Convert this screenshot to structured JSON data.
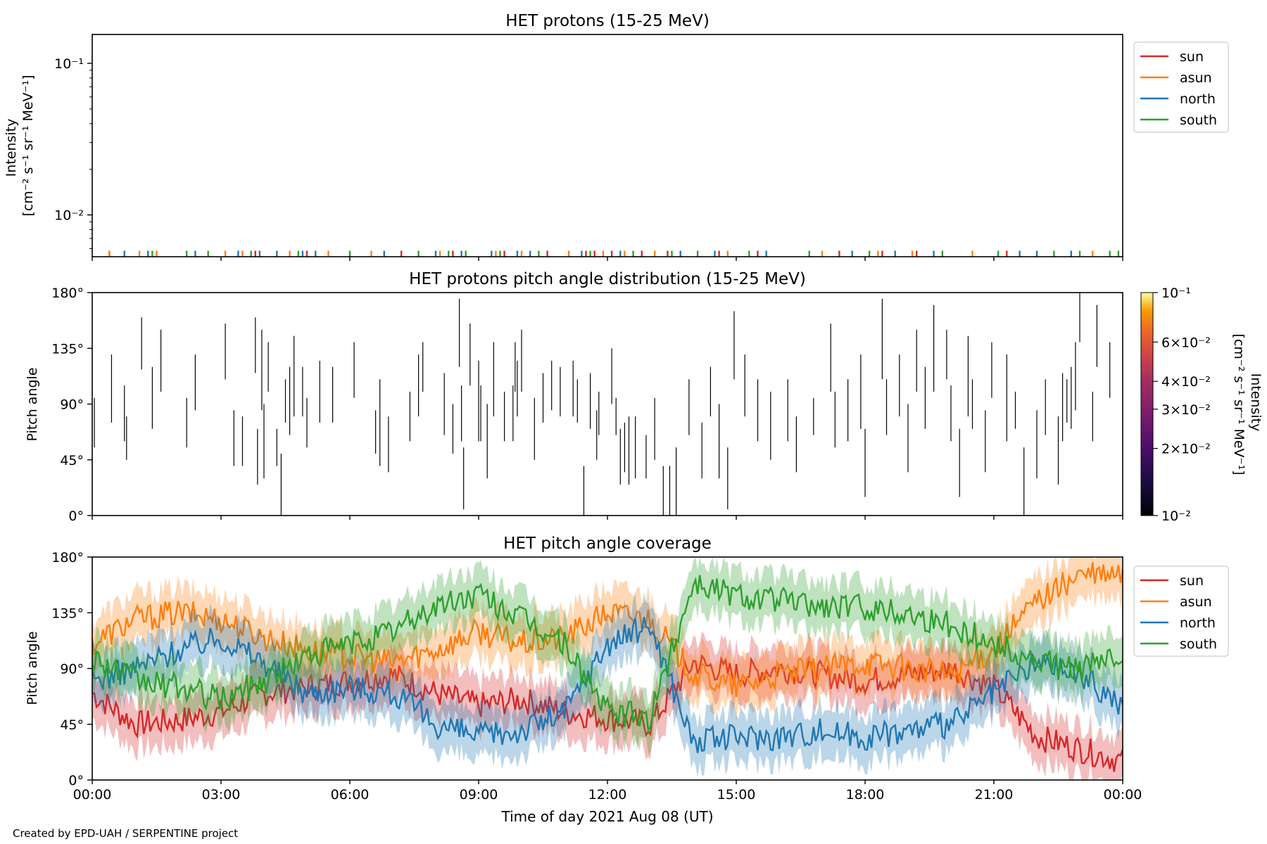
{
  "footer": "Created by EPD-UAH / SERPENTINE project",
  "xlabel": "Time of day 2021 Aug 08 (UT)",
  "xticks": [
    "00:00",
    "03:00",
    "06:00",
    "09:00",
    "12:00",
    "15:00",
    "18:00",
    "21:00",
    "00:00"
  ],
  "colors": {
    "sun": "#d62728",
    "asun": "#ff7f0e",
    "north": "#1f77b4",
    "south": "#2ca02c"
  },
  "chart_data": [
    {
      "type": "line",
      "title": "HET protons (15-25 MeV)",
      "ylabel_line1": "Intensity",
      "ylabel_line2": "[cm⁻² s⁻¹ sr⁻¹ MeV⁻¹]",
      "yscale": "log",
      "ylim": [
        0.0053,
        0.155
      ],
      "yticks": [
        {
          "value": 0.1,
          "label": "10⁻¹"
        },
        {
          "value": 0.01,
          "label": "10⁻²"
        }
      ],
      "xlim_hours": [
        0,
        24
      ],
      "legend": [
        "sun",
        "asun",
        "north",
        "south"
      ],
      "legend_position": "upper right, outside",
      "note": "only isolated single-count spikes just above the lower axis limit",
      "series": [
        {
          "name": "sun",
          "color": "#d62728",
          "spike_hours": [
            0.4,
            3.8,
            5.0,
            7.2,
            8.4,
            9.6,
            10.6,
            11.5,
            11.7,
            12.1,
            12.8,
            13.4,
            14.6,
            15.5,
            17.4,
            18.4,
            19.2,
            21.3,
            22.8
          ]
        },
        {
          "name": "asun",
          "color": "#ff7f0e",
          "spike_hours": [
            0.4,
            1.1,
            1.5,
            3.1,
            3.5,
            4.6,
            5.5,
            6.5,
            8.1,
            9.4,
            10.0,
            11.1,
            11.9,
            12.4,
            13.1,
            14.8,
            17.0,
            18.3,
            19.1,
            20.5,
            23.3
          ]
        },
        {
          "name": "north",
          "color": "#1f77b4",
          "spike_hours": [
            0.75,
            1.3,
            2.4,
            3.4,
            3.9,
            4.3,
            4.9,
            5.2,
            6.8,
            8.0,
            8.6,
            9.3,
            9.9,
            10.2,
            11.4,
            12.3,
            13.7,
            14.5,
            15.7,
            17.7,
            18.7,
            19.6,
            21.6,
            22.0,
            22.8
          ]
        },
        {
          "name": "south",
          "color": "#2ca02c",
          "spike_hours": [
            1.4,
            2.2,
            2.7,
            3.7,
            4.8,
            6.0,
            7.6,
            8.3,
            8.7,
            9.5,
            10.4,
            11.6,
            12.6,
            13.5,
            14.1,
            15.3,
            16.7,
            18.1,
            19.8,
            21.1,
            22.4,
            23.0,
            23.7,
            23.9
          ]
        }
      ]
    },
    {
      "type": "heatmap",
      "title": "HET protons pitch angle distribution (15-25 MeV)",
      "ylabel": "Pitch angle",
      "ylim": [
        0,
        180
      ],
      "yticks": [
        "0°",
        "45°",
        "90°",
        "135°",
        "180°"
      ],
      "xlim_hours": [
        0,
        24
      ],
      "colorbar": {
        "label": "Intensity",
        "units": "[cm⁻² s⁻¹ sr⁻¹ MeV⁻¹]",
        "scale": "log",
        "range": [
          0.01,
          0.1
        ],
        "colormap": "inferno",
        "ticks": [
          {
            "value": 0.1,
            "label": "10⁻¹"
          },
          {
            "value": 0.06,
            "label": "6×10⁻²"
          },
          {
            "value": 0.04,
            "label": "4×10⁻²"
          },
          {
            "value": 0.03,
            "label": "3×10⁻²"
          },
          {
            "value": 0.02,
            "label": "2×10⁻²"
          },
          {
            "value": 0.01,
            "label": "10⁻²"
          }
        ]
      },
      "note": "sparse, near-black narrow vertical segments (pitch-angle bins with counts)",
      "segments": [
        [
          0.05,
          55,
          95
        ],
        [
          0.45,
          75,
          130
        ],
        [
          0.75,
          60,
          105
        ],
        [
          0.8,
          45,
          80
        ],
        [
          1.15,
          118,
          160
        ],
        [
          1.4,
          70,
          120
        ],
        [
          1.6,
          100,
          150
        ],
        [
          2.2,
          55,
          95
        ],
        [
          2.4,
          85,
          130
        ],
        [
          3.1,
          110,
          155
        ],
        [
          3.3,
          40,
          85
        ],
        [
          3.5,
          40,
          80
        ],
        [
          3.8,
          115,
          160
        ],
        [
          3.85,
          25,
          70
        ],
        [
          3.95,
          85,
          150
        ],
        [
          4.0,
          30,
          90
        ],
        [
          4.1,
          100,
          140
        ],
        [
          4.3,
          40,
          70
        ],
        [
          4.4,
          0,
          50
        ],
        [
          4.5,
          75,
          110
        ],
        [
          4.6,
          65,
          120
        ],
        [
          4.7,
          80,
          145
        ],
        [
          4.9,
          80,
          120
        ],
        [
          5.0,
          55,
          95
        ],
        [
          5.3,
          75,
          125
        ],
        [
          5.6,
          75,
          120
        ],
        [
          6.1,
          95,
          140
        ],
        [
          6.6,
          50,
          85
        ],
        [
          6.7,
          40,
          110
        ],
        [
          6.9,
          35,
          80
        ],
        [
          7.4,
          60,
          100
        ],
        [
          7.6,
          80,
          130
        ],
        [
          7.7,
          100,
          140
        ],
        [
          8.2,
          65,
          115
        ],
        [
          8.4,
          50,
          90
        ],
        [
          8.55,
          120,
          175
        ],
        [
          8.6,
          60,
          105
        ],
        [
          8.65,
          5,
          55
        ],
        [
          8.8,
          105,
          155
        ],
        [
          9.0,
          60,
          125
        ],
        [
          9.05,
          60,
          105
        ],
        [
          9.2,
          30,
          90
        ],
        [
          9.35,
          80,
          140
        ],
        [
          9.6,
          60,
          100
        ],
        [
          9.8,
          60,
          105
        ],
        [
          9.85,
          100,
          140
        ],
        [
          9.9,
          80,
          125
        ],
        [
          10.0,
          100,
          150
        ],
        [
          10.3,
          45,
          95
        ],
        [
          10.5,
          75,
          115
        ],
        [
          10.7,
          85,
          125
        ],
        [
          10.9,
          80,
          120
        ],
        [
          11.2,
          80,
          125
        ],
        [
          11.3,
          75,
          110
        ],
        [
          11.45,
          0,
          40
        ],
        [
          11.6,
          70,
          115
        ],
        [
          11.75,
          45,
          85
        ],
        [
          11.8,
          65,
          100
        ],
        [
          12.1,
          90,
          135
        ],
        [
          12.2,
          65,
          95
        ],
        [
          12.3,
          25,
          70
        ],
        [
          12.4,
          35,
          75
        ],
        [
          12.5,
          25,
          80
        ],
        [
          12.65,
          30,
          80
        ],
        [
          12.9,
          30,
          65
        ],
        [
          13.1,
          45,
          95
        ],
        [
          13.3,
          0,
          40
        ],
        [
          13.45,
          0,
          40
        ],
        [
          13.6,
          0,
          55
        ],
        [
          13.9,
          65,
          110
        ],
        [
          14.2,
          30,
          75
        ],
        [
          14.4,
          80,
          120
        ],
        [
          14.6,
          30,
          90
        ],
        [
          14.8,
          5,
          55
        ],
        [
          14.95,
          110,
          165
        ],
        [
          15.2,
          80,
          130
        ],
        [
          15.5,
          60,
          110
        ],
        [
          15.8,
          45,
          100
        ],
        [
          16.2,
          60,
          110
        ],
        [
          16.4,
          35,
          80
        ],
        [
          16.8,
          65,
          95
        ],
        [
          17.2,
          100,
          155
        ],
        [
          17.3,
          55,
          100
        ],
        [
          17.6,
          60,
          110
        ],
        [
          17.9,
          70,
          130
        ],
        [
          18.0,
          15,
          70
        ],
        [
          18.4,
          110,
          175
        ],
        [
          18.5,
          65,
          110
        ],
        [
          18.8,
          80,
          130
        ],
        [
          19.0,
          35,
          90
        ],
        [
          19.2,
          100,
          150
        ],
        [
          19.4,
          70,
          120
        ],
        [
          19.6,
          100,
          170
        ],
        [
          19.9,
          110,
          150
        ],
        [
          20.0,
          60,
          105
        ],
        [
          20.2,
          15,
          70
        ],
        [
          20.4,
          80,
          145
        ],
        [
          20.5,
          70,
          110
        ],
        [
          20.8,
          35,
          85
        ],
        [
          20.95,
          95,
          140
        ],
        [
          21.3,
          60,
          130
        ],
        [
          21.5,
          70,
          100
        ],
        [
          21.7,
          0,
          55
        ],
        [
          22.0,
          30,
          85
        ],
        [
          22.2,
          65,
          110
        ],
        [
          22.5,
          25,
          80
        ],
        [
          22.6,
          60,
          115
        ],
        [
          22.7,
          75,
          110
        ],
        [
          22.8,
          70,
          120
        ],
        [
          22.9,
          85,
          140
        ],
        [
          23.0,
          140,
          180
        ],
        [
          23.3,
          60,
          100
        ],
        [
          23.4,
          120,
          170
        ],
        [
          23.7,
          95,
          140
        ]
      ]
    },
    {
      "type": "line",
      "title": "HET pitch angle coverage",
      "ylabel": "Pitch angle",
      "ylim": [
        0,
        180
      ],
      "yticks": [
        "0°",
        "45°",
        "90°",
        "135°",
        "180°"
      ],
      "xlim_hours": [
        0,
        24
      ],
      "legend": [
        "sun",
        "asun",
        "north",
        "south"
      ],
      "legend_position": "upper right, outside",
      "shaded_band_halfwidth_deg": 20,
      "series": [
        {
          "name": "sun",
          "color": "#d62728",
          "x_hours": [
            0,
            1,
            2,
            3,
            4,
            5,
            6,
            7,
            8,
            9,
            10,
            11,
            12,
            13,
            14,
            15,
            16,
            17,
            18,
            19,
            20,
            21,
            22,
            23,
            24
          ],
          "y": [
            70,
            45,
            48,
            55,
            70,
            75,
            80,
            85,
            70,
            60,
            65,
            55,
            50,
            45,
            95,
            85,
            90,
            85,
            80,
            85,
            90,
            75,
            35,
            25,
            15
          ]
        },
        {
          "name": "asun",
          "color": "#ff7f0e",
          "x_hours": [
            0,
            1,
            2,
            3,
            4,
            5,
            6,
            7,
            8,
            9,
            10,
            11,
            12,
            13,
            14,
            15,
            16,
            17,
            18,
            19,
            20,
            21,
            22,
            23,
            24
          ],
          "y": [
            110,
            130,
            135,
            130,
            115,
            105,
            100,
            95,
            105,
            120,
            110,
            115,
            135,
            130,
            85,
            75,
            85,
            90,
            95,
            90,
            85,
            105,
            145,
            165,
            165
          ]
        },
        {
          "name": "north",
          "color": "#1f77b4",
          "x_hours": [
            0,
            1,
            2,
            3,
            4,
            5,
            6,
            7,
            8,
            9,
            10,
            11,
            12,
            13,
            14,
            15,
            16,
            17,
            18,
            19,
            20,
            21,
            22,
            23,
            24
          ],
          "y": [
            80,
            90,
            105,
            115,
            95,
            70,
            75,
            70,
            45,
            35,
            40,
            55,
            110,
            125,
            30,
            35,
            35,
            40,
            35,
            40,
            45,
            70,
            95,
            85,
            60
          ]
        },
        {
          "name": "south",
          "color": "#2ca02c",
          "x_hours": [
            0,
            1,
            2,
            3,
            4,
            5,
            6,
            7,
            8,
            9,
            10,
            11,
            12,
            13,
            14,
            15,
            16,
            17,
            18,
            19,
            20,
            21,
            22,
            23,
            24
          ],
          "y": [
            100,
            80,
            75,
            65,
            80,
            100,
            110,
            120,
            140,
            150,
            130,
            110,
            55,
            50,
            160,
            150,
            145,
            140,
            140,
            135,
            125,
            110,
            95,
            90,
            100
          ]
        }
      ]
    }
  ]
}
